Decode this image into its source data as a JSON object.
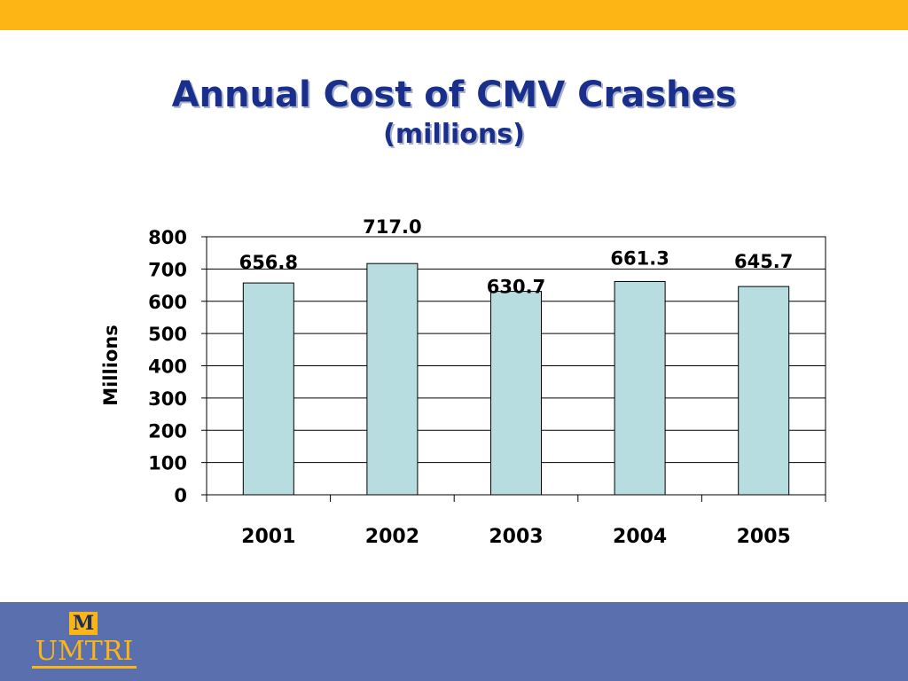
{
  "slide": {
    "title": "Annual Cost of CMV Crashes",
    "subtitle": "(millions)"
  },
  "logo": {
    "mark": "M",
    "text": "UMTRI"
  },
  "colors": {
    "top_band": "#fdb515",
    "bottom_band": "#5a6fad",
    "title": "#1a2f8c",
    "bar_fill": "#b8dde0",
    "bar_stroke": "#000000"
  },
  "chart_data": {
    "type": "bar",
    "categories": [
      "2001",
      "2002",
      "2003",
      "2004",
      "2005"
    ],
    "values": [
      656.8,
      717.0,
      630.7,
      661.3,
      645.7
    ],
    "data_labels": [
      "656.8",
      "717.0",
      "630.7",
      "661.3",
      "645.7"
    ],
    "ylabel": "Millions",
    "xlabel": "",
    "ylim": [
      0,
      800
    ],
    "yticks": [
      "0",
      "100",
      "200",
      "300",
      "400",
      "500",
      "600",
      "700",
      "800"
    ],
    "grid": true,
    "legend": "none"
  }
}
